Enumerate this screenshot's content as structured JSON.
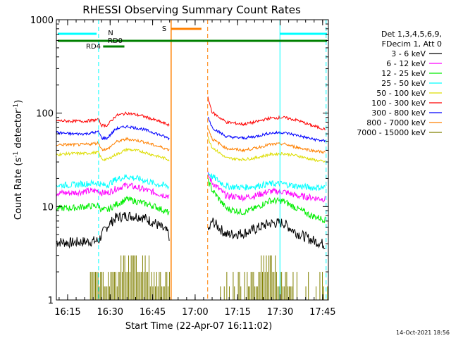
{
  "chart_data": {
    "type": "line",
    "title": "RHESSI Observing Summary Count Rates",
    "xlabel": "Start Time (22-Apr-07 16:11:02)",
    "ylabel": "Count Rate (s⁻¹ detector⁻¹)",
    "ylabel_main": "Count Rate (s",
    "ylabel_sup1": "-1",
    "ylabel_mid": " detector",
    "ylabel_sup2": "-1",
    "ylabel_end": ")",
    "x_unit": "minutes since 16:11:02",
    "xlim": [
      0,
      96
    ],
    "ylim": [
      1,
      1000
    ],
    "y_scale": "log",
    "x_ticks": [
      "16:15",
      "16:30",
      "16:45",
      "17:00",
      "17:15",
      "17:30",
      "17:45"
    ],
    "x_tick_values": [
      3.97,
      18.97,
      33.97,
      48.97,
      63.97,
      78.97,
      93.97
    ],
    "y_ticks": [
      "1",
      "10",
      "100",
      "1000"
    ],
    "y_tick_values": [
      1,
      10,
      100,
      1000
    ],
    "legend_header": [
      "Det 1,3,4,5,6,9,",
      "FDecim 1, Att 0"
    ],
    "legend_position": "right",
    "series": [
      {
        "name": "3 - 6 keV",
        "color": "#000000",
        "x": [
          0,
          5,
          10,
          14.9,
          16,
          18,
          21,
          25,
          30,
          35,
          39.5,
          40,
          53.5,
          55,
          60,
          66,
          70,
          75,
          80,
          85,
          90,
          95
        ],
        "y": [
          4.2,
          4.1,
          4.2,
          4.3,
          5,
          6.2,
          7.6,
          8,
          7.8,
          6.6,
          5.2,
          4.6,
          5.3,
          7,
          5,
          5.2,
          5.7,
          6.6,
          6.7,
          5.2,
          4.4,
          3.9
        ]
      },
      {
        "name": "6 - 12 keV",
        "color": "#ff00ff",
        "x": [
          0,
          5,
          10,
          14.9,
          16,
          18,
          21,
          25,
          30,
          35,
          39.5,
          40,
          53.5,
          55,
          60,
          66,
          70,
          75,
          80,
          85,
          90,
          95
        ],
        "y": [
          14,
          14,
          14.5,
          14.8,
          14,
          14,
          15.5,
          17,
          15.5,
          14,
          13,
          12.5,
          22,
          18,
          13,
          12.5,
          13,
          14.5,
          14.5,
          13,
          12.5,
          12
        ]
      },
      {
        "name": "12 - 25 keV",
        "color": "#00ee00",
        "x": [
          0,
          5,
          10,
          14.9,
          16,
          18,
          21,
          25,
          30,
          35,
          39.5,
          40,
          53.5,
          55,
          60,
          66,
          70,
          75,
          80,
          85,
          90,
          95
        ],
        "y": [
          9.6,
          9.6,
          10,
          10.2,
          9.2,
          9.2,
          10.5,
          12,
          11,
          10,
          8.6,
          8.2,
          19,
          15,
          9.5,
          8.7,
          9.5,
          11.5,
          11.5,
          9.5,
          8,
          7.2
        ]
      },
      {
        "name": "25 - 50 keV",
        "color": "#00ffff",
        "x": [
          0,
          5,
          10,
          14.9,
          16,
          18,
          21,
          25,
          30,
          35,
          39.5,
          40,
          53.5,
          55,
          60,
          66,
          70,
          75,
          80,
          85,
          90,
          95
        ],
        "y": [
          17,
          17,
          17.5,
          18,
          17,
          17,
          19.5,
          21,
          19.5,
          17.5,
          16.5,
          16,
          23,
          21,
          16.5,
          16,
          16.5,
          17.5,
          17.5,
          16.5,
          16,
          16
        ]
      },
      {
        "name": "50 - 100 keV",
        "color": "#dddd00",
        "x": [
          0,
          5,
          10,
          14.9,
          16,
          18,
          21,
          25,
          30,
          35,
          39.5,
          40,
          53.5,
          55,
          60,
          66,
          70,
          75,
          80,
          85,
          90,
          95
        ],
        "y": [
          36,
          37,
          37,
          38,
          32,
          32,
          36,
          41,
          39,
          35,
          32,
          31,
          55,
          43,
          33,
          32,
          33,
          36,
          37,
          35,
          32,
          30
        ]
      },
      {
        "name": "100 - 300 keV",
        "color": "#ff0000",
        "x": [
          0,
          5,
          10,
          14.9,
          16,
          18,
          21,
          25,
          30,
          35,
          39.5,
          40,
          53.5,
          55,
          60,
          66,
          70,
          75,
          80,
          85,
          90,
          95
        ],
        "y": [
          83,
          82,
          82,
          85,
          74,
          74,
          94,
          100,
          94,
          84,
          75,
          72,
          145,
          102,
          80,
          76,
          80,
          88,
          90,
          84,
          74,
          67
        ]
      },
      {
        "name": "300 - 800 keV",
        "color": "#0000ff",
        "x": [
          0,
          5,
          10,
          14.9,
          16,
          18,
          21,
          25,
          30,
          35,
          39.5,
          40,
          53.5,
          55,
          60,
          66,
          70,
          75,
          80,
          85,
          90,
          95
        ],
        "y": [
          62,
          60,
          60,
          63,
          54,
          54,
          68,
          72,
          68,
          61,
          54,
          53,
          92,
          70,
          56,
          54,
          56,
          61,
          62,
          58,
          53,
          50
        ]
      },
      {
        "name": "800 - 7000 keV",
        "color": "#ff8000",
        "x": [
          0,
          5,
          10,
          14.9,
          16,
          18,
          21,
          25,
          30,
          35,
          39.5,
          40,
          53.5,
          55,
          60,
          66,
          70,
          75,
          80,
          85,
          90,
          95
        ],
        "y": [
          46,
          46,
          46,
          48,
          41,
          41,
          49,
          53,
          50,
          45,
          41,
          40,
          70,
          53,
          42,
          40,
          42,
          46,
          47,
          43,
          40,
          38
        ]
      },
      {
        "name": "7000 - 15000 keV",
        "color": "#808000",
        "x": [
          0,
          5,
          10,
          14.9,
          16,
          18,
          21,
          25,
          30,
          35,
          39.5,
          40,
          53.5,
          55,
          60,
          66,
          70,
          75,
          80,
          85,
          90,
          95
        ],
        "y": [
          1,
          1,
          1,
          2,
          1.5,
          1.5,
          2,
          3,
          3,
          2,
          1.5,
          1,
          1,
          1.5,
          1,
          1,
          2,
          3,
          2,
          1,
          1,
          1
        ]
      }
    ],
    "annotations": [
      {
        "label": "N",
        "color": "#00c8c8",
        "x": 14.9
      },
      {
        "label": "RD0",
        "color": "#008000",
        "x": 14.9
      },
      {
        "label": "RD4",
        "color": "#008000",
        "x": 8
      },
      {
        "label": "S",
        "color": "#ff8000",
        "x": 41
      }
    ],
    "timestamp": "14-Oct-2021 18:56",
    "grid": false
  },
  "colors": {
    "cyan": "#00ffff",
    "green": "#008000",
    "orange": "#ff8000",
    "olive": "#808000"
  }
}
